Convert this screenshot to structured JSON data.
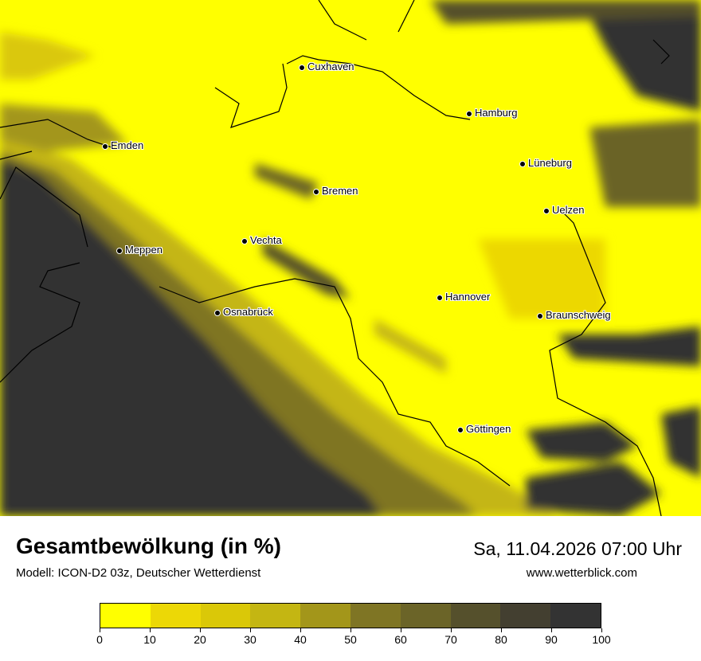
{
  "map": {
    "cities": [
      {
        "name": "Cuxhaven"
      },
      {
        "name": "Hamburg"
      },
      {
        "name": "Emden"
      },
      {
        "name": "Lüneburg"
      },
      {
        "name": "Bremen"
      },
      {
        "name": "Uelzen"
      },
      {
        "name": "Vechta"
      },
      {
        "name": "Meppen"
      },
      {
        "name": "Hannover"
      },
      {
        "name": "Osnabrück"
      },
      {
        "name": "Braunschweig"
      },
      {
        "name": "Göttingen"
      }
    ]
  },
  "footer": {
    "title": "Gesamtbewölkung (in %)",
    "model": "Modell: ICON-D2 03z, Deutscher Wetterdienst",
    "datetime": "Sa, 11.04.2026 07:00 Uhr",
    "website": "www.wetterblick.com"
  },
  "legend": {
    "ticks": [
      "0",
      "10",
      "20",
      "30",
      "40",
      "50",
      "60",
      "70",
      "80",
      "90",
      "100"
    ],
    "colors": [
      "#ffff00",
      "#ecd806",
      "#dac808",
      "#c4b612",
      "#a3961a",
      "#7f7524",
      "#6b6428",
      "#55502c",
      "#433f30",
      "#333333"
    ]
  }
}
